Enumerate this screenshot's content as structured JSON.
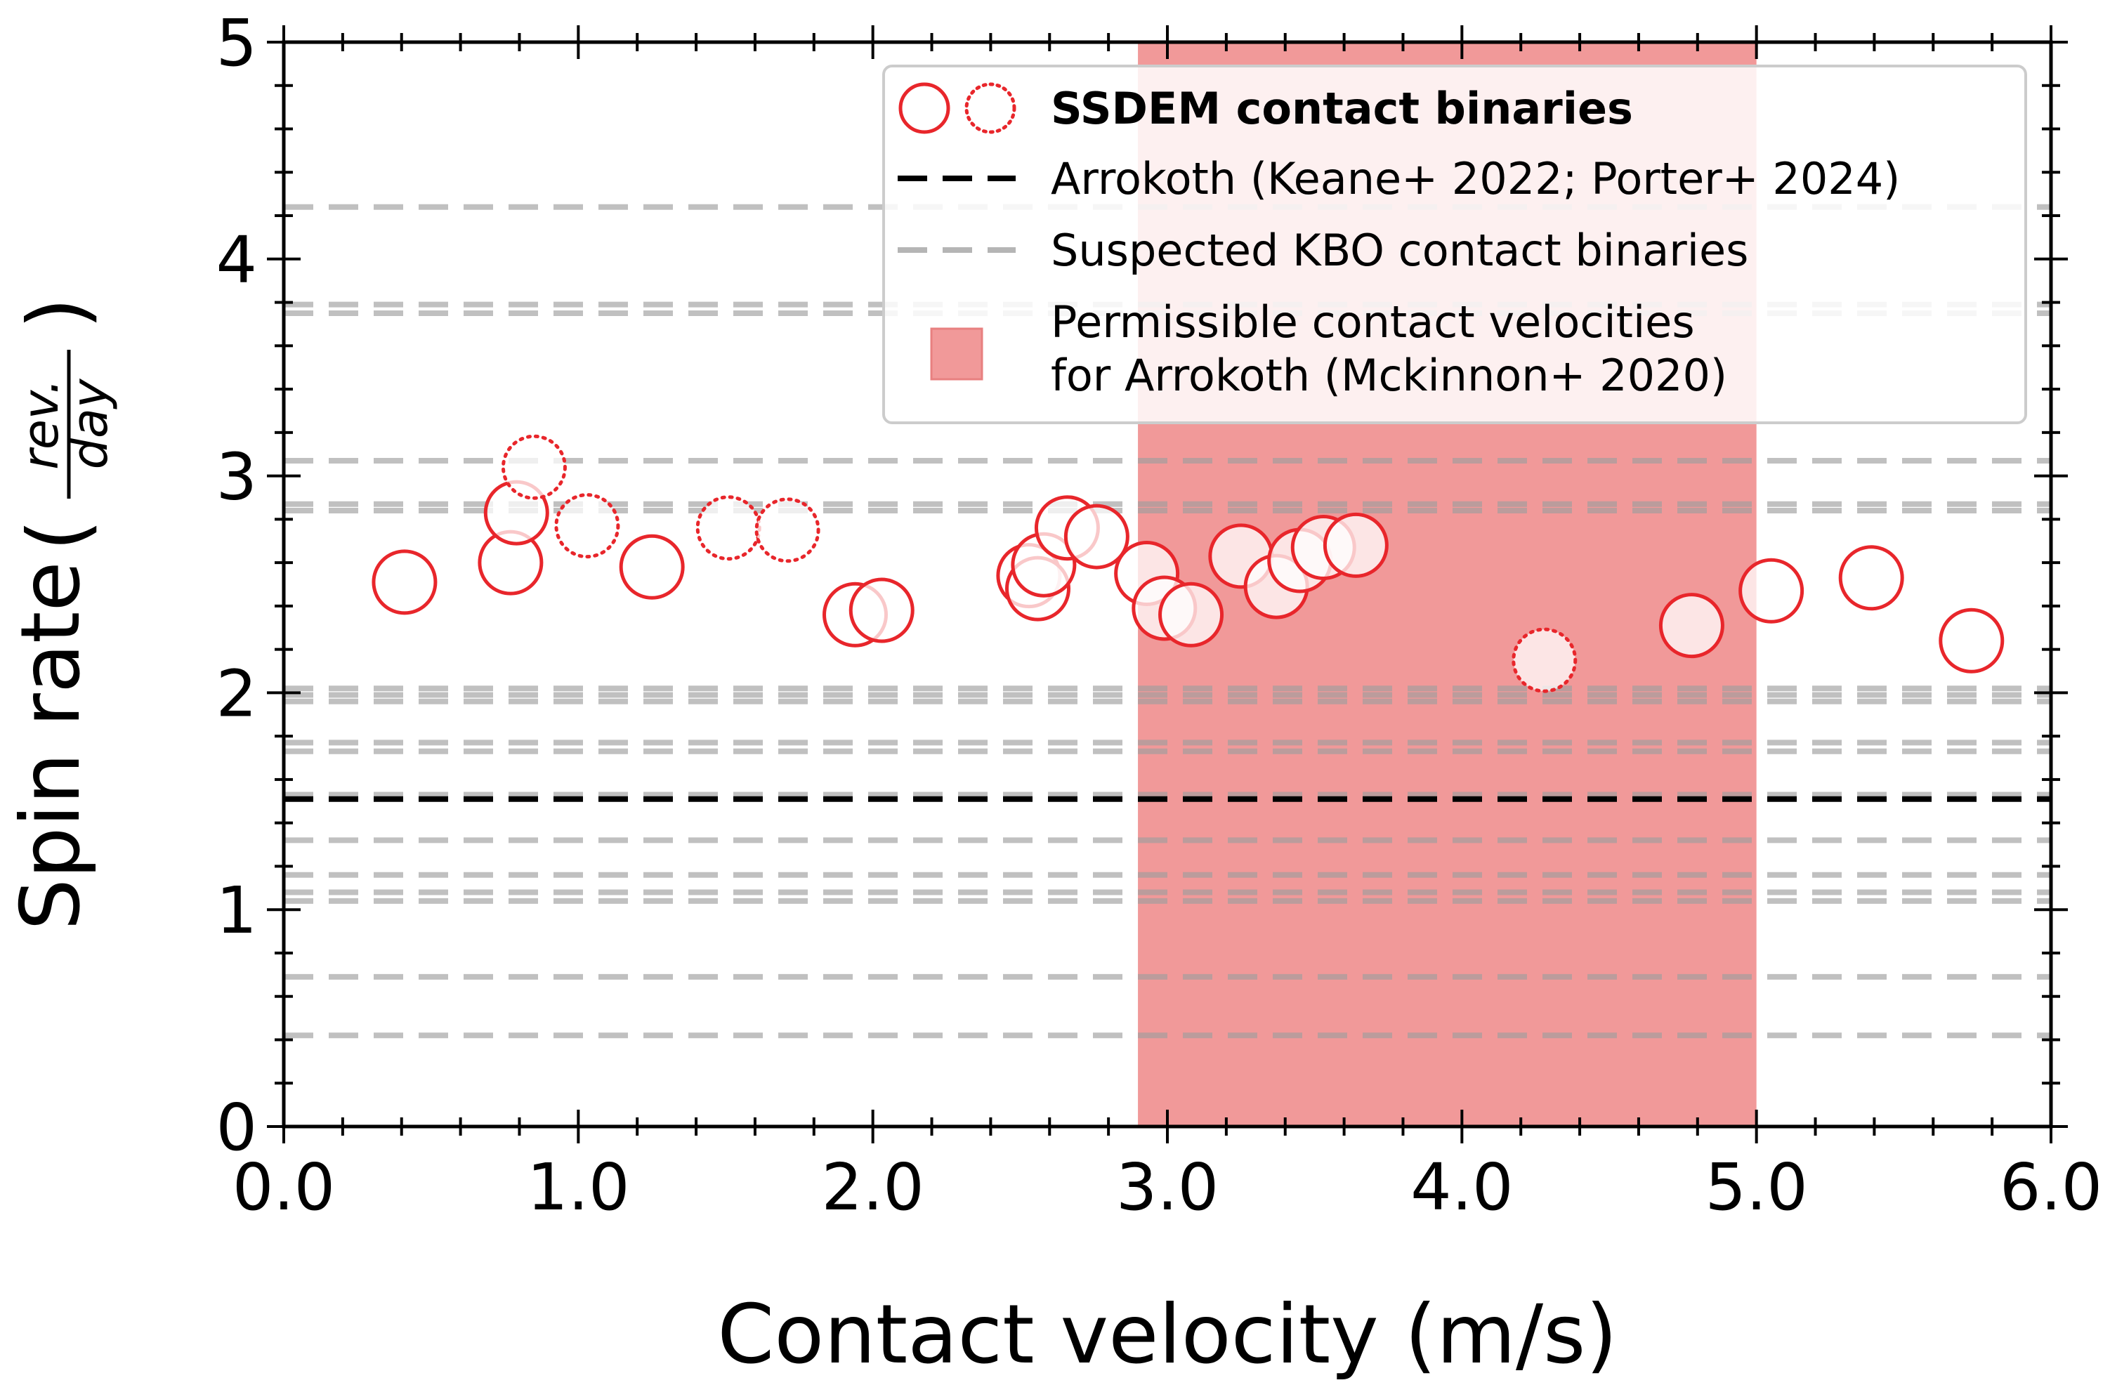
{
  "chart_data": {
    "type": "scatter",
    "xlabel": "Contact velocity (m/s)",
    "ylabel": "Spin rate",
    "ylabel_unit_num": "rev.",
    "ylabel_unit_den": "day",
    "xlim": [
      0,
      6
    ],
    "ylim": [
      0,
      5
    ],
    "x_ticks": [
      "0.0",
      "1.0",
      "2.0",
      "3.0",
      "4.0",
      "5.0",
      "6.0"
    ],
    "y_ticks": [
      "0",
      "1",
      "2",
      "3",
      "4",
      "5"
    ],
    "grid": false,
    "legend_position": "top-right",
    "colors": {
      "points": "#e8262b",
      "shaded_region": "#f19999",
      "arrokoth_line": "#000000",
      "kbo_lines": "#aaaaaa"
    },
    "legend": [
      {
        "label": "SSDEM contact binaries",
        "marker": "circle-solid-and-dotted"
      },
      {
        "label": "Arrokoth (Keane+ 2022; Porter+ 2024)",
        "marker": "black-dashed-line"
      },
      {
        "label": "Suspected KBO contact binaries",
        "marker": "grey-dashed-line"
      },
      {
        "label_line1": "Permissible contact velocities",
        "label_line2": "for Arrokoth (Mckinnon+ 2020)",
        "marker": "red-patch"
      }
    ],
    "shaded_region": {
      "x_start": 2.9,
      "x_end": 5.0
    },
    "arrokoth_spin": 1.51,
    "kbo_spin_rates": [
      4.24,
      3.79,
      3.75,
      3.07,
      2.87,
      2.84,
      2.02,
      1.99,
      1.96,
      1.77,
      1.73,
      1.53,
      1.32,
      1.16,
      1.08,
      1.04,
      0.69,
      0.42
    ],
    "series": [
      {
        "name": "SSDEM contact binaries",
        "style": "solid",
        "x": [
          0.41,
          0.77,
          0.79,
          1.25,
          1.94,
          2.03,
          2.53,
          2.56,
          2.58,
          2.66,
          2.76,
          2.93,
          2.99,
          3.08,
          3.25,
          3.37,
          3.45,
          3.53,
          3.64,
          4.78,
          5.05,
          5.39,
          5.73
        ],
        "y": [
          2.51,
          2.6,
          2.83,
          2.58,
          2.36,
          2.38,
          2.54,
          2.48,
          2.59,
          2.76,
          2.72,
          2.55,
          2.39,
          2.36,
          2.63,
          2.49,
          2.61,
          2.67,
          2.68,
          2.31,
          2.47,
          2.53,
          2.24
        ]
      },
      {
        "name": "SSDEM contact binaries",
        "style": "dotted",
        "x": [
          0.85,
          1.03,
          1.51,
          1.71,
          4.28
        ],
        "y": [
          3.04,
          2.77,
          2.76,
          2.75,
          2.15
        ]
      }
    ]
  }
}
